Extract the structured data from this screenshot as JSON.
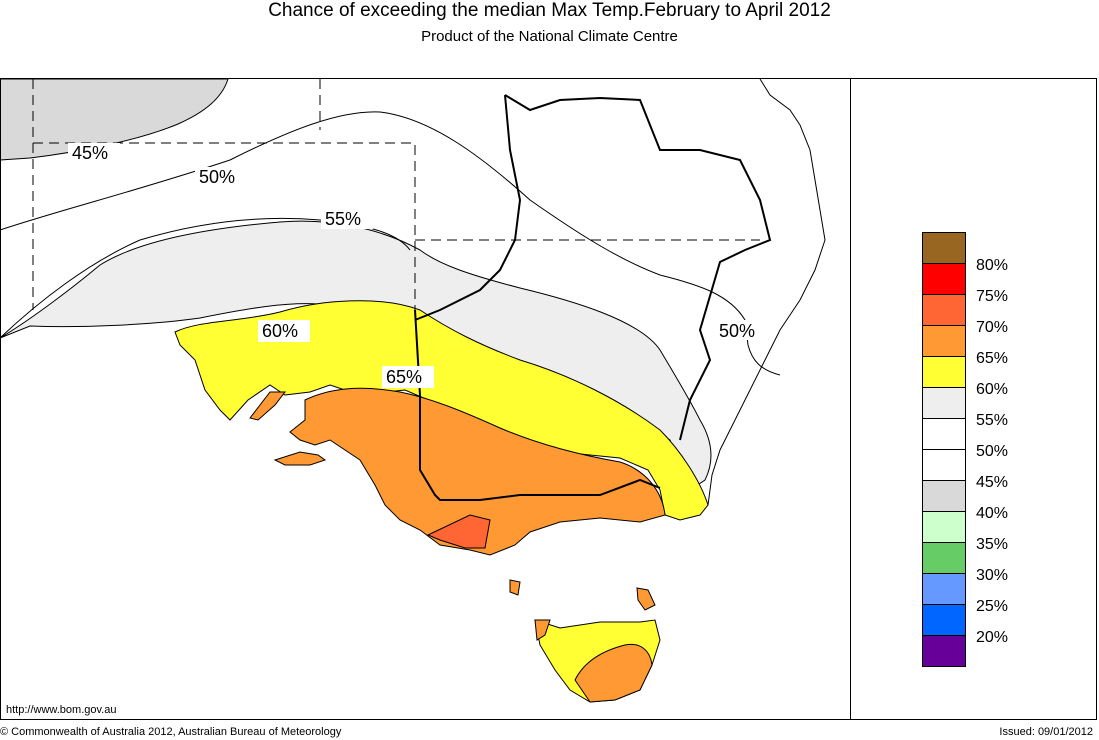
{
  "title": "Chance of exceeding the median Max Temp.February to April 2012",
  "subtitle": "Product of the National Climate Centre",
  "contour_labels": {
    "c45": "45%",
    "c50_west": "50%",
    "c50_east": "50%",
    "c55": "55%",
    "c60": "60%",
    "c65": "65%"
  },
  "colors": {
    "c80": "#996622",
    "c75": "#ff0000",
    "c70": "#ff6633",
    "c65": "#ff9933",
    "c60": "#ffff33",
    "c55": "#eeeeee",
    "c50": "#ffffff",
    "c45": "#ffffff",
    "c40": "#d9d9d9",
    "c35": "#ccffcc",
    "c30": "#66cc66",
    "c25": "#6699ff",
    "c20": "#0066ff",
    "c_low": "#660099"
  },
  "legend": {
    "labels": [
      "80%",
      "75%",
      "70%",
      "65%",
      "60%",
      "55%",
      "50%",
      "45%",
      "40%",
      "35%",
      "30%",
      "25%",
      "20%"
    ]
  },
  "footer": {
    "url": "http://www.bom.gov.au",
    "copyright": "© Commonwealth of Australia 2012, Australian Bureau of Meteorology",
    "issued": "Issued: 09/01/2012"
  }
}
